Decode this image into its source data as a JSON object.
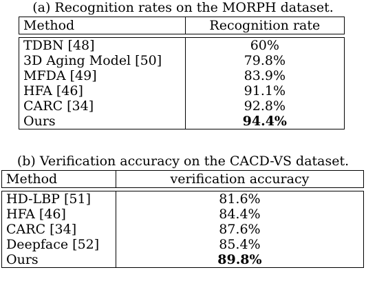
{
  "table_a": {
    "caption": "(a) Recognition rates on the MORPH dataset.",
    "headers": [
      "Method",
      "Recognition rate"
    ],
    "rows": [
      {
        "method": "TDBN [48]",
        "value": "60%"
      },
      {
        "method": "3D Aging Model [50]",
        "value": "79.8%"
      },
      {
        "method": "MFDA [49]",
        "value": "83.9%"
      },
      {
        "method": "HFA [46]",
        "value": "91.1%"
      },
      {
        "method": "CARC [34]",
        "value": "92.8%"
      },
      {
        "method": "Ours",
        "value": "94.4%"
      }
    ]
  },
  "table_b": {
    "caption": "(b) Verification accuracy on the CACD-VS dataset.",
    "headers": [
      "Method",
      "verification accuracy"
    ],
    "rows": [
      {
        "method": "HD-LBP [51]",
        "value": "81.6%"
      },
      {
        "method": "HFA [46]",
        "value": "84.4%"
      },
      {
        "method": "CARC [34]",
        "value": "87.6%"
      },
      {
        "method": "Deepface [52]",
        "value": "85.4%"
      },
      {
        "method": "Ours",
        "value": "89.8%"
      }
    ]
  }
}
